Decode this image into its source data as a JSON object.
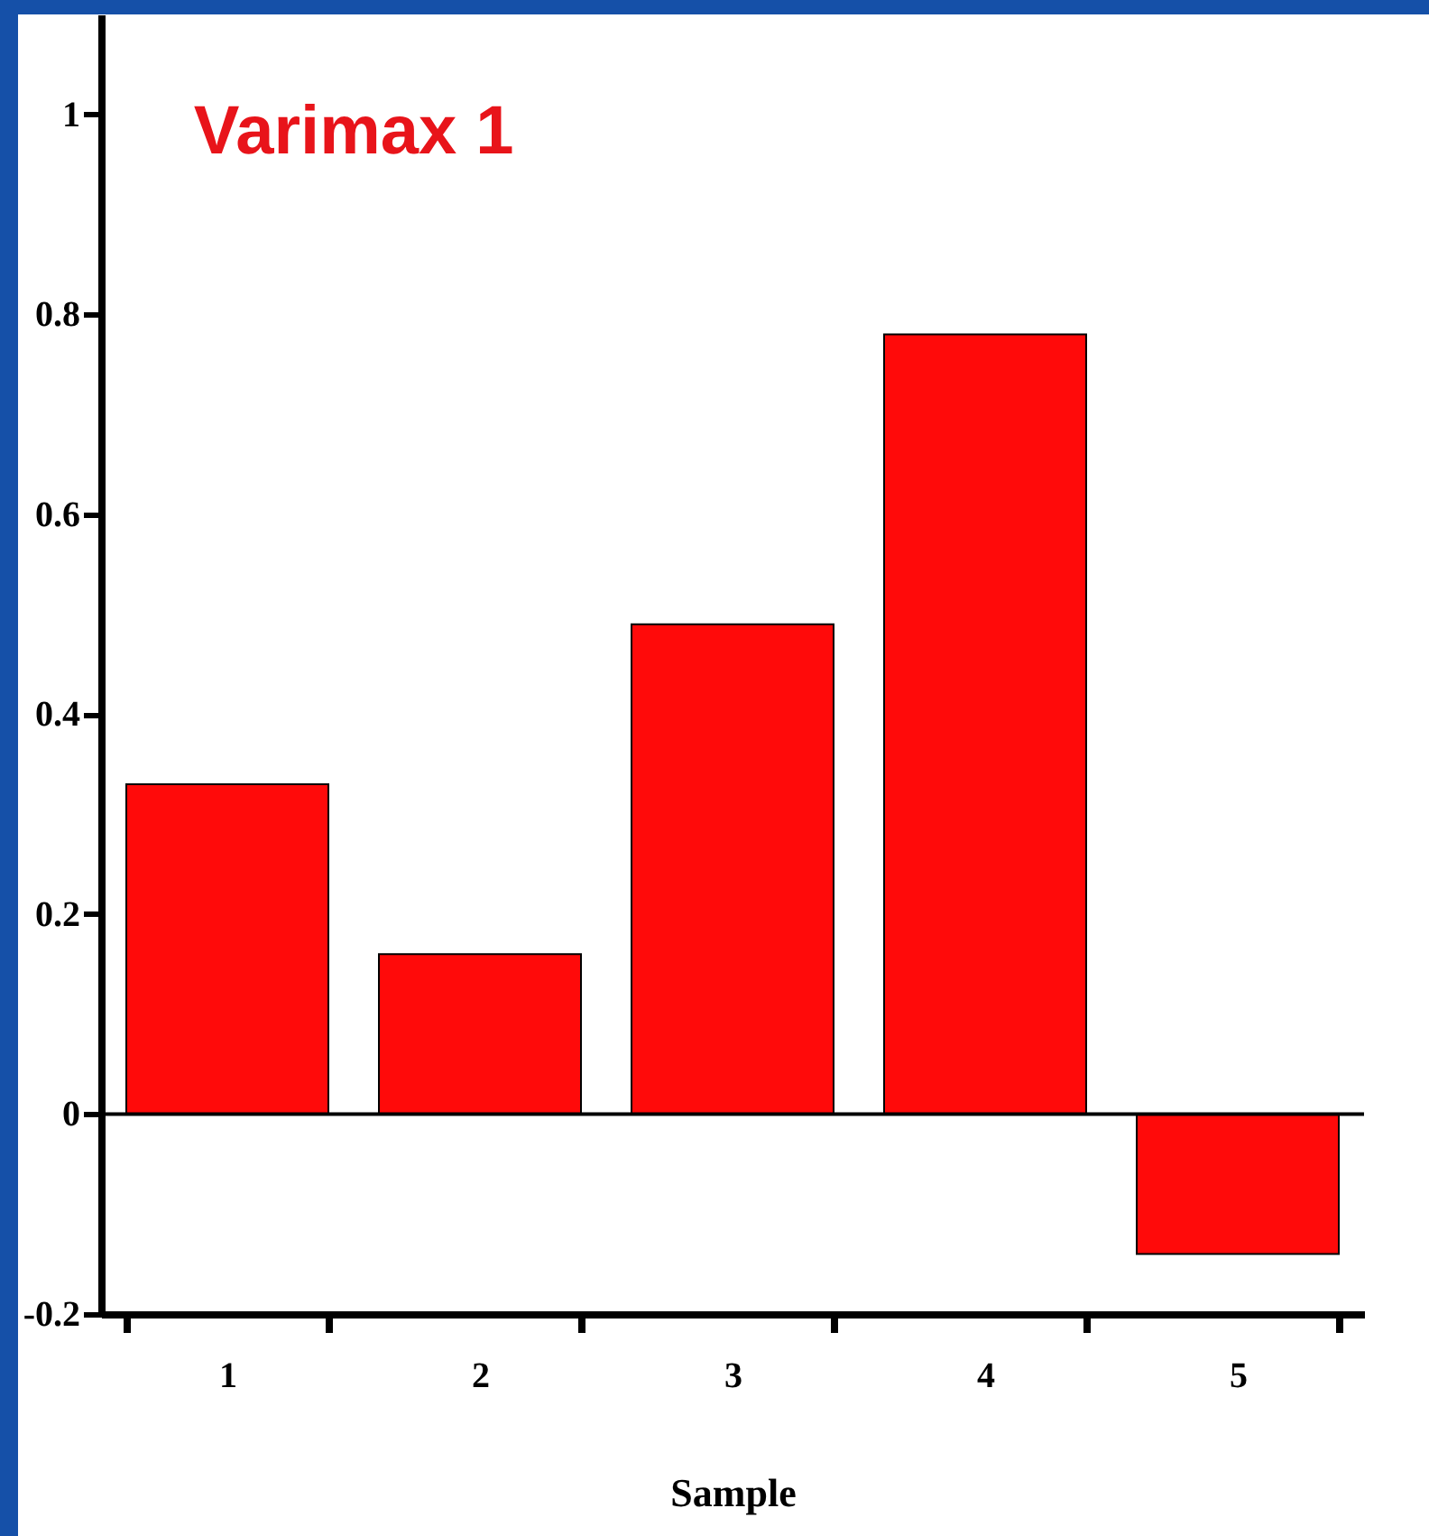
{
  "chart_data": {
    "type": "bar",
    "title": "Varimax 1",
    "xlabel": "Sample",
    "categories": [
      "1",
      "2",
      "3",
      "4",
      "5"
    ],
    "values": [
      0.33,
      0.16,
      0.49,
      0.78,
      -0.14
    ],
    "color": "#ff0a0a",
    "ylim": [
      -0.2,
      1.1
    ],
    "yticks": [
      -0.2,
      0,
      0.2,
      0.4,
      0.6,
      0.8,
      1
    ],
    "ref_lines": [
      {
        "axis": "y",
        "value": 0,
        "color": "#000000"
      }
    ],
    "grid": false
  }
}
